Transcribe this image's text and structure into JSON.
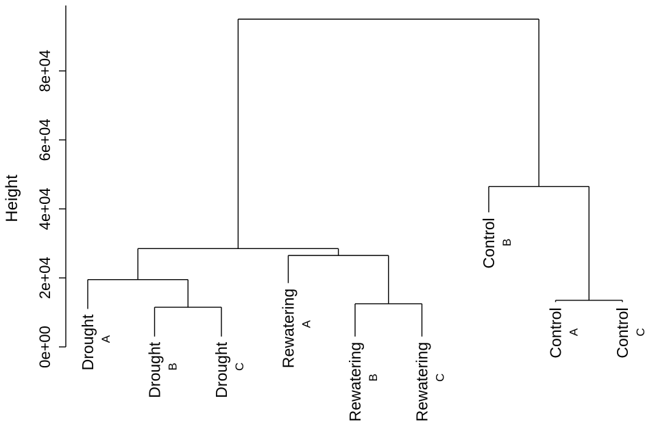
{
  "chart_data": {
    "type": "dendrogram",
    "ylabel": "Height",
    "ylim": [
      0,
      95000
    ],
    "y_ticks": [
      {
        "value": 0,
        "label": "0e+00"
      },
      {
        "value": 20000,
        "label": "2e+04"
      },
      {
        "value": 40000,
        "label": "4e+04"
      },
      {
        "value": 60000,
        "label": "6e+04"
      },
      {
        "value": 80000,
        "label": "8e+04"
      }
    ],
    "leaves": [
      {
        "id": "drought-a",
        "name": "Drought",
        "sub": "A",
        "height": 11000
      },
      {
        "id": "drought-b",
        "name": "Drought",
        "sub": "B",
        "height": 3000
      },
      {
        "id": "drought-c",
        "name": "Drought",
        "sub": "C",
        "height": 3000
      },
      {
        "id": "rewatering-a",
        "name": "Rewatering",
        "sub": "A",
        "height": 18500
      },
      {
        "id": "rewatering-b",
        "name": "Rewatering",
        "sub": "B",
        "height": 3000
      },
      {
        "id": "rewatering-c",
        "name": "Rewatering",
        "sub": "C",
        "height": 3000
      },
      {
        "id": "control-b",
        "name": "Control",
        "sub": "B",
        "height": 39000
      },
      {
        "id": "control-a",
        "name": "Control",
        "sub": "A",
        "height": 13000
      },
      {
        "id": "control-c",
        "name": "Control",
        "sub": "C",
        "height": 13000
      }
    ],
    "merges": [
      {
        "id": "m-drought-bc",
        "children": [
          "drought-b",
          "drought-c"
        ],
        "height": 11500
      },
      {
        "id": "m-rewatering-bc",
        "children": [
          "rewatering-b",
          "rewatering-c"
        ],
        "height": 12500
      },
      {
        "id": "m-control-ac",
        "children": [
          "control-a",
          "control-c"
        ],
        "height": 13500
      },
      {
        "id": "m-drought",
        "children": [
          "drought-a",
          "m-drought-bc"
        ],
        "height": 19500
      },
      {
        "id": "m-rewatering",
        "children": [
          "rewatering-a",
          "m-rewatering-bc"
        ],
        "height": 26500
      },
      {
        "id": "m-drought-rewatering",
        "children": [
          "m-drought",
          "m-rewatering"
        ],
        "height": 28500
      },
      {
        "id": "m-control",
        "children": [
          "control-b",
          "m-control-ac"
        ],
        "height": 46500
      },
      {
        "id": "m-root",
        "children": [
          "m-drought-rewatering",
          "m-control"
        ],
        "height": 95000
      }
    ],
    "root": "m-root",
    "colors": {
      "lines": "#000000",
      "text": "#000000",
      "background": "#ffffff"
    }
  }
}
